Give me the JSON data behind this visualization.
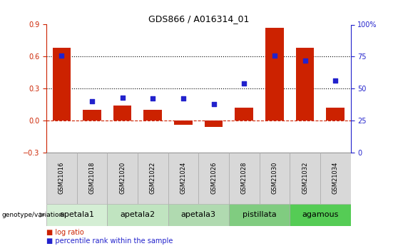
{
  "title": "GDS866 / A016314_01",
  "samples": [
    "GSM21016",
    "GSM21018",
    "GSM21020",
    "GSM21022",
    "GSM21024",
    "GSM21026",
    "GSM21028",
    "GSM21030",
    "GSM21032",
    "GSM21034"
  ],
  "log_ratio": [
    0.68,
    0.1,
    0.14,
    0.1,
    -0.04,
    -0.06,
    0.12,
    0.87,
    0.68,
    0.12
  ],
  "percentile_rank": [
    76,
    40,
    43,
    42,
    42,
    38,
    54,
    76,
    72,
    56
  ],
  "groups": [
    {
      "label": "apetala1",
      "color": "#d4eed4",
      "start": 0,
      "end": 2
    },
    {
      "label": "apetala2",
      "color": "#c0e4c0",
      "start": 2,
      "end": 4
    },
    {
      "label": "apetala3",
      "color": "#b0dab0",
      "start": 4,
      "end": 6
    },
    {
      "label": "pistillata",
      "color": "#80cc80",
      "start": 6,
      "end": 8
    },
    {
      "label": "agamous",
      "color": "#55cc55",
      "start": 8,
      "end": 10
    }
  ],
  "ylim_left": [
    -0.3,
    0.9
  ],
  "ylim_right": [
    0,
    100
  ],
  "yticks_left": [
    -0.3,
    0.0,
    0.3,
    0.6,
    0.9
  ],
  "yticks_right": [
    0,
    25,
    50,
    75,
    100
  ],
  "ytick_labels_right": [
    "0",
    "25",
    "50",
    "75",
    "100%"
  ],
  "hlines": [
    0.3,
    0.6
  ],
  "bar_color": "#cc2200",
  "dot_color": "#2222cc",
  "bar_width": 0.6,
  "legend_items": [
    {
      "label": "log ratio",
      "color": "#cc2200"
    },
    {
      "label": "percentile rank within the sample",
      "color": "#2222cc"
    }
  ],
  "sample_box_color": "#d8d8d8",
  "title_fontsize": 9,
  "tick_fontsize": 7,
  "sample_fontsize": 6,
  "group_fontsize": 8
}
